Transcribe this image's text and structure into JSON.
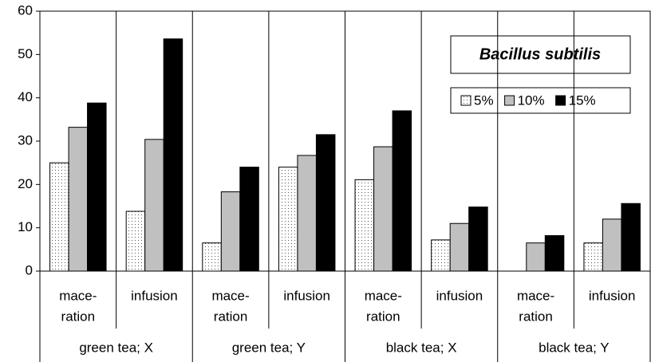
{
  "chart_data": {
    "type": "bar",
    "legend_title": "Bacillus subtilis",
    "categories": [
      [
        "mace-",
        "ration"
      ],
      [
        "infusion"
      ],
      [
        "mace-",
        "ration"
      ],
      [
        "infusion"
      ],
      [
        "mace-",
        "ration"
      ],
      [
        "infusion"
      ],
      [
        "mace-",
        "ration"
      ],
      [
        "infusion"
      ]
    ],
    "groups": [
      "green tea; X",
      "green tea; Y",
      "black tea; X",
      "black tea; Y"
    ],
    "series": [
      {
        "name": "5%",
        "color": "#ffffff",
        "pattern": "dotted",
        "values": [
          25,
          13.8,
          6.5,
          24,
          21.1,
          7.2,
          null,
          6.5
        ]
      },
      {
        "name": "10%",
        "color": "#c0c0c0",
        "values": [
          33.2,
          30.4,
          18.3,
          26.7,
          28.7,
          11,
          6.5,
          12
        ]
      },
      {
        "name": "15%",
        "color": "#000000",
        "values": [
          38.8,
          53.6,
          24,
          31.5,
          37,
          14.8,
          8.2,
          15.6
        ]
      }
    ],
    "ylim": [
      0,
      60
    ],
    "yticks": [
      0,
      10,
      20,
      30,
      40,
      50,
      60
    ]
  }
}
